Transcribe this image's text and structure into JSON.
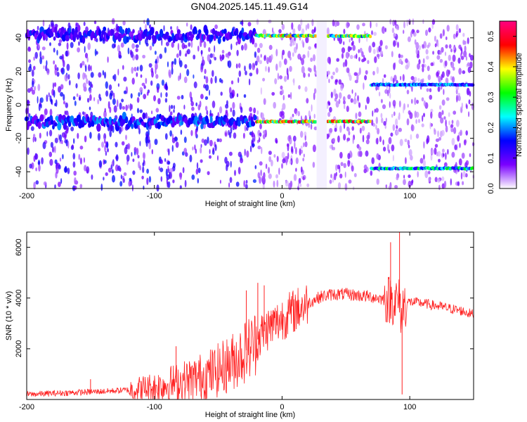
{
  "title": "GN04.2025.145.11.49.G14",
  "chart_data": [
    {
      "type": "heatmap",
      "xlabel": "Height of straight line (km)",
      "ylabel": "Frequency (Hz)",
      "colorbar_label": "Normalized spectral amplitude",
      "xlim": [
        -200,
        150
      ],
      "ylim": [
        -50,
        50
      ],
      "x_ticks": [
        -200,
        -100,
        0,
        100
      ],
      "y_ticks": [
        -40,
        -20,
        0,
        20,
        40
      ],
      "colorbar_range": [
        0.0,
        0.55
      ],
      "colorbar_ticks": [
        0.0,
        0.1,
        0.2,
        0.3,
        0.4,
        0.5
      ],
      "colormap": [
        "#ffffff",
        "#7a00ff",
        "#0000ff",
        "#00ffff",
        "#00ff00",
        "#ffff00",
        "#ff0000",
        "#ff0080"
      ],
      "gap_x_range": [
        27,
        35
      ],
      "ridges": [
        {
          "x_start": -200,
          "x_end": 70,
          "freq_start": 42,
          "freq_end": 41,
          "peak_amplitude": 0.45
        },
        {
          "x_start": -200,
          "x_end": 70,
          "freq_start": -10,
          "freq_end": -10,
          "peak_amplitude": 0.52
        },
        {
          "x_start": 70,
          "x_end": 150,
          "freq_start": 12,
          "freq_end": 12,
          "peak_amplitude": 0.25
        },
        {
          "x_start": 70,
          "x_end": 150,
          "freq_start": -38,
          "freq_end": -38,
          "peak_amplitude": 0.32
        }
      ]
    },
    {
      "type": "line",
      "xlabel": "Height of straight line (km)",
      "ylabel": "SNR (10 * v/v)",
      "xlim": [
        -200,
        150
      ],
      "ylim": [
        0,
        6600
      ],
      "x_ticks": [
        -200,
        -100,
        0,
        100
      ],
      "y_ticks": [
        2000,
        4000,
        6000
      ],
      "color": "#ff2020",
      "series": [
        {
          "x": [
            -200,
            -180,
            -160,
            -140,
            -120,
            -100,
            -90,
            -80,
            -70,
            -60,
            -50,
            -40,
            -30,
            -20,
            -15,
            -10,
            -5,
            0,
            10,
            20,
            30,
            40,
            50,
            60,
            70,
            75,
            80,
            85,
            88,
            90,
            92,
            94,
            95,
            96,
            100,
            110,
            120,
            130,
            140,
            150
          ],
          "values": [
            200,
            240,
            280,
            320,
            380,
            480,
            600,
            700,
            800,
            950,
            1150,
            1450,
            1850,
            2300,
            2650,
            2850,
            3000,
            3200,
            3500,
            3800,
            4050,
            4150,
            4150,
            4100,
            4050,
            4000,
            3950,
            3950,
            3900,
            3900,
            3800,
            3200,
            3800,
            3800,
            3850,
            3800,
            3700,
            3600,
            3500,
            3350
          ]
        }
      ],
      "spikes": [
        {
          "x": -150,
          "value": 800
        },
        {
          "x": -83,
          "value": 2100
        },
        {
          "x": -28,
          "value": 4300
        },
        {
          "x": -19,
          "value": 4600
        },
        {
          "x": -14,
          "value": 4500
        },
        {
          "x": 85,
          "value": 6200
        },
        {
          "x": 92,
          "value": 6600
        },
        {
          "x": 94,
          "value": 200
        }
      ]
    }
  ]
}
